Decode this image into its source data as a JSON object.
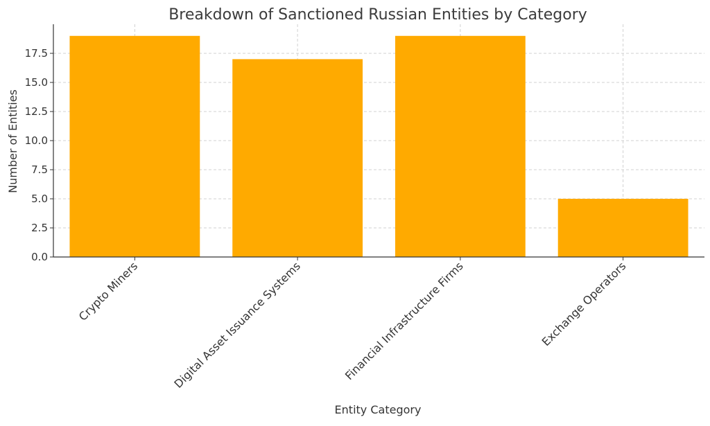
{
  "chart_data": {
    "type": "bar",
    "title": "Breakdown of Sanctioned Russian Entities by Category",
    "xlabel": "Entity Category",
    "ylabel": "Number of Entities",
    "categories": [
      "Crypto Miners",
      "Digital Asset Issuance Systems",
      "Financial Infrastructure Firms",
      "Exchange Operators"
    ],
    "values": [
      19,
      17,
      19,
      5
    ],
    "ylim": [
      0,
      20
    ],
    "yticks": [
      "0.0",
      "2.5",
      "5.0",
      "7.5",
      "10.0",
      "12.5",
      "15.0",
      "17.5"
    ],
    "bar_color": "#FFAA00",
    "grid": true
  }
}
